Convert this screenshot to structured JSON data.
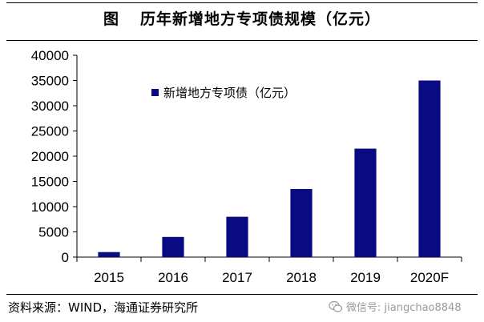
{
  "header": {
    "figure_label": "图",
    "title": "历年新增地方专项债规模（亿元）"
  },
  "chart_data": {
    "type": "bar",
    "categories": [
      "2015",
      "2016",
      "2017",
      "2018",
      "2019",
      "2020F"
    ],
    "series": [
      {
        "name": "新增地方专项债（亿元）",
        "values": [
          1000,
          4000,
          8000,
          13500,
          21500,
          35000
        ],
        "color": "#0a0a82"
      }
    ],
    "ylim": [
      0,
      40000
    ],
    "yticks": [
      "0",
      "5000",
      "10000",
      "15000",
      "20000",
      "25000",
      "30000",
      "35000",
      "40000"
    ],
    "legend_position": "top-left",
    "grid": false
  },
  "footer": {
    "source": "资料来源：WIND，海通证券研究所",
    "watermark": "微信号: jiangchao8848"
  }
}
